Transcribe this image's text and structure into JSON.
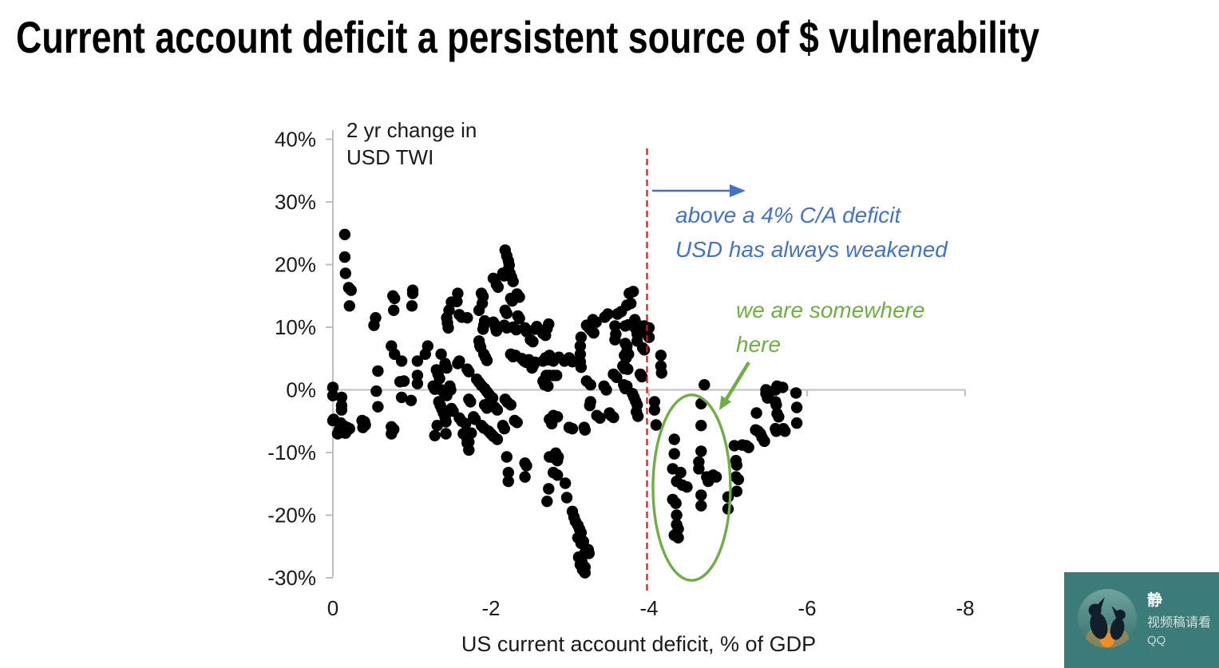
{
  "page": {
    "title": "Current account deficit a persistent source of $ vulnerability"
  },
  "chart_data": {
    "type": "scatter",
    "y_axis_note_line1": "2 yr change in",
    "y_axis_note_line2": "USD TWI",
    "xlabel": "US current account deficit, % of GDP",
    "xlim": [
      0,
      -8
    ],
    "ylim": [
      -30,
      40
    ],
    "grid": false,
    "axis_color": "#BFBFBF",
    "tick_label_color": "#1A1A1A",
    "point_color": "#000000",
    "x_ticks": [
      {
        "value": 0,
        "label": "0"
      },
      {
        "value": -2,
        "label": "-2"
      },
      {
        "value": -4,
        "label": "-4"
      },
      {
        "value": -6,
        "label": "-6"
      },
      {
        "value": -8,
        "label": "-8"
      }
    ],
    "y_ticks": [
      {
        "value": 40,
        "label": "40%"
      },
      {
        "value": 30,
        "label": "30%"
      },
      {
        "value": 20,
        "label": "20%"
      },
      {
        "value": 10,
        "label": "10%"
      },
      {
        "value": 0,
        "label": "0%"
      },
      {
        "value": -10,
        "label": "-10%"
      },
      {
        "value": -20,
        "label": "-20%"
      },
      {
        "value": -30,
        "label": "-30%"
      }
    ],
    "reference_line": {
      "x": -4,
      "color": "#EE1111",
      "style": "dashed"
    },
    "annotations": {
      "blue": {
        "line1": "above a 4% C/A deficit",
        "line2": "USD has always weakened",
        "color": "#4472C4",
        "arrow": "right"
      },
      "green": {
        "line1": "we are somewhere",
        "line2": "here",
        "color": "#70AD47",
        "arrow": "down-left",
        "ellipse": {
          "cx": -4.54,
          "cy": -15.6,
          "rx": 0.49,
          "ry": 14.8
        }
      }
    },
    "points": [
      [
        -0.15,
        24.8
      ],
      [
        -0.15,
        21.2
      ],
      [
        -0.16,
        18.6
      ],
      [
        -0.2,
        16.3
      ],
      [
        -0.23,
        15.9
      ],
      [
        -0.21,
        13.4
      ],
      [
        0.0,
        0.4
      ],
      [
        0.0,
        -0.9
      ],
      [
        -0.11,
        -1.2
      ],
      [
        -0.11,
        -2.5
      ],
      [
        -0.11,
        -3.2
      ],
      [
        -0.01,
        -4.7
      ],
      [
        0.0,
        -4.9
      ],
      [
        -0.1,
        -5.3
      ],
      [
        -0.13,
        -5.7
      ],
      [
        -0.18,
        -6.0
      ],
      [
        -0.21,
        -6.2
      ],
      [
        -0.08,
        -6.4
      ],
      [
        -0.11,
        -6.8
      ],
      [
        -0.06,
        -7.0
      ],
      [
        -0.16,
        -6.9
      ],
      [
        -0.37,
        -4.9
      ],
      [
        -0.4,
        -5.1
      ],
      [
        -0.41,
        -5.6
      ],
      [
        -0.38,
        -6.0
      ],
      [
        -0.76,
        15.0
      ],
      [
        -0.78,
        14.6
      ],
      [
        -0.77,
        12.7
      ],
      [
        -1.01,
        15.9
      ],
      [
        -1.01,
        15.4
      ],
      [
        -1.0,
        13.4
      ],
      [
        -0.54,
        11.5
      ],
      [
        -0.52,
        10.3
      ],
      [
        -0.74,
        7.0
      ],
      [
        -0.78,
        5.7
      ],
      [
        -0.87,
        4.6
      ],
      [
        -0.57,
        3.0
      ],
      [
        -0.9,
        1.4
      ],
      [
        -0.85,
        1.3
      ],
      [
        -0.55,
        -0.2
      ],
      [
        -0.57,
        -2.7
      ],
      [
        -0.87,
        -1.2
      ],
      [
        -0.99,
        -1.7
      ],
      [
        -0.74,
        -5.9
      ],
      [
        -0.77,
        -6.3
      ],
      [
        -0.74,
        -7.0
      ],
      [
        -1.2,
        7.0
      ],
      [
        -1.17,
        5.7
      ],
      [
        -1.07,
        4.6
      ],
      [
        -1.07,
        2.3
      ],
      [
        -1.07,
        1.0
      ],
      [
        -1.37,
        5.7
      ],
      [
        -1.42,
        4.2
      ],
      [
        -1.44,
        3.5
      ],
      [
        -1.31,
        3.2
      ],
      [
        -1.33,
        2.5
      ],
      [
        -1.35,
        1.8
      ],
      [
        -1.27,
        0.6
      ],
      [
        -1.29,
        0.1
      ],
      [
        -1.37,
        0.0
      ],
      [
        -1.41,
        -0.5
      ],
      [
        -1.44,
        -0.9
      ],
      [
        -1.48,
        0.6
      ],
      [
        -1.49,
        0.0
      ],
      [
        -1.34,
        -1.9
      ],
      [
        -1.36,
        -2.5
      ],
      [
        -1.38,
        -3.1
      ],
      [
        -1.4,
        -3.7
      ],
      [
        -1.42,
        -4.4
      ],
      [
        -1.43,
        -5.1
      ],
      [
        -1.32,
        -5.7
      ],
      [
        -1.29,
        -7.3
      ],
      [
        -1.43,
        -7.0
      ],
      [
        -1.5,
        -3.0
      ],
      [
        -1.52,
        -3.4
      ],
      [
        -1.58,
        15.4
      ],
      [
        -1.57,
        14.1
      ],
      [
        -1.5,
        14.0
      ],
      [
        -1.47,
        12.7
      ],
      [
        -1.44,
        11.5
      ],
      [
        -1.45,
        10.7
      ],
      [
        -1.46,
        9.9
      ],
      [
        -1.6,
        12.0
      ],
      [
        -1.63,
        11.6
      ],
      [
        -1.7,
        11.5
      ],
      [
        -1.58,
        4.2
      ],
      [
        -1.6,
        4.6
      ],
      [
        -1.7,
        3.3
      ],
      [
        -1.72,
        2.9
      ],
      [
        -1.6,
        -4.5
      ],
      [
        -1.63,
        -5.0
      ],
      [
        -1.68,
        -5.4
      ],
      [
        -1.78,
        -4.3
      ],
      [
        -1.8,
        -4.7
      ],
      [
        -1.72,
        -1.5
      ],
      [
        -1.74,
        -1.9
      ],
      [
        -1.65,
        -7.0
      ],
      [
        -1.7,
        -7.5
      ],
      [
        -1.72,
        -8.3
      ],
      [
        -1.75,
        -6.9
      ],
      [
        -1.7,
        -7.9
      ],
      [
        -1.7,
        -8.5
      ],
      [
        -1.72,
        -9.6
      ],
      [
        -1.88,
        15.4
      ],
      [
        -1.9,
        14.9
      ],
      [
        -1.89,
        13.8
      ],
      [
        -1.85,
        12.7
      ],
      [
        -1.92,
        11.0
      ],
      [
        -1.91,
        10.3
      ],
      [
        -1.9,
        9.7
      ],
      [
        -1.85,
        7.8
      ],
      [
        -1.86,
        7.1
      ],
      [
        -1.87,
        6.8
      ],
      [
        -1.91,
        5.7
      ],
      [
        -1.93,
        5.2
      ],
      [
        -1.95,
        4.7
      ],
      [
        -1.82,
        1.7
      ],
      [
        -1.85,
        1.2
      ],
      [
        -1.88,
        0.7
      ],
      [
        -1.92,
        0.2
      ],
      [
        -1.95,
        -0.3
      ],
      [
        -1.98,
        -0.8
      ],
      [
        -2.02,
        -1.3
      ],
      [
        -1.88,
        -5.7
      ],
      [
        -1.91,
        -6.1
      ],
      [
        -1.97,
        -6.6
      ],
      [
        -2.0,
        -7.0
      ],
      [
        -2.03,
        -7.4
      ],
      [
        -2.05,
        -2.8
      ],
      [
        -2.08,
        -3.2
      ],
      [
        -1.92,
        -2.4
      ],
      [
        -1.95,
        -2.9
      ],
      [
        -2.08,
        -7.9
      ],
      [
        -2.03,
        17.8
      ],
      [
        -2.05,
        17.6
      ],
      [
        -2.07,
        16.8
      ],
      [
        -2.09,
        16.4
      ],
      [
        -2.03,
        10.8
      ],
      [
        -2.05,
        10.4
      ],
      [
        -2.06,
        9.9
      ],
      [
        -2.07,
        9.4
      ],
      [
        -2.18,
        22.3
      ],
      [
        -2.2,
        21.4
      ],
      [
        -2.22,
        20.6
      ],
      [
        -2.23,
        19.9
      ],
      [
        -2.22,
        19.2
      ],
      [
        -2.24,
        18.6
      ],
      [
        -2.26,
        18.0
      ],
      [
        -2.28,
        17.3
      ],
      [
        -2.15,
        18.6
      ],
      [
        -2.17,
        18.2
      ],
      [
        -2.33,
        15.3
      ],
      [
        -2.36,
        14.8
      ],
      [
        -2.25,
        14.6
      ],
      [
        -2.27,
        14.2
      ],
      [
        -2.18,
        12.7
      ],
      [
        -2.2,
        12.2
      ],
      [
        -2.34,
        11.8
      ],
      [
        -2.36,
        11.4
      ],
      [
        -2.17,
        10.3
      ],
      [
        -2.2,
        9.9
      ],
      [
        -2.28,
        10.0
      ],
      [
        -2.32,
        9.6
      ],
      [
        -2.43,
        9.9
      ],
      [
        -2.45,
        9.3
      ],
      [
        -2.25,
        5.7
      ],
      [
        -2.28,
        5.3
      ],
      [
        -2.31,
        5.5
      ],
      [
        -2.39,
        5.0
      ],
      [
        -2.42,
        4.6
      ],
      [
        -2.45,
        4.4
      ],
      [
        -2.48,
        4.8
      ],
      [
        -2.18,
        -1.5
      ],
      [
        -2.21,
        -2.0
      ],
      [
        -2.25,
        -2.4
      ],
      [
        -2.15,
        -5.7
      ],
      [
        -2.17,
        -6.2
      ],
      [
        -2.3,
        -4.9
      ],
      [
        -2.33,
        -5.2
      ],
      [
        -2.2,
        -10.7
      ],
      [
        -2.22,
        -13.2
      ],
      [
        -2.22,
        -14.6
      ],
      [
        -2.43,
        -11.7
      ],
      [
        -2.45,
        -12.1
      ],
      [
        -2.43,
        -13.9
      ],
      [
        -2.52,
        3.5
      ],
      [
        -2.54,
        4.0
      ],
      [
        -2.56,
        4.4
      ],
      [
        -2.56,
        9.7
      ],
      [
        -2.58,
        10.1
      ],
      [
        -2.71,
        9.8
      ],
      [
        -2.73,
        10.5
      ],
      [
        -2.66,
        9.0
      ],
      [
        -2.69,
        8.7
      ],
      [
        -2.5,
        8.0
      ],
      [
        -2.53,
        7.7
      ],
      [
        -2.66,
        4.6
      ],
      [
        -2.69,
        5.1
      ],
      [
        -2.73,
        4.8
      ],
      [
        -2.76,
        5.1
      ],
      [
        -2.79,
        4.6
      ],
      [
        -2.7,
        2.3
      ],
      [
        -2.74,
        2.3
      ],
      [
        -2.79,
        2.3
      ],
      [
        -2.83,
        2.3
      ],
      [
        -2.66,
        1.4
      ],
      [
        -2.68,
        0.8
      ],
      [
        -2.72,
        0.6
      ],
      [
        -2.74,
        -4.7
      ],
      [
        -2.77,
        -5.4
      ],
      [
        -2.79,
        -4.1
      ],
      [
        -2.84,
        -4.3
      ],
      [
        -2.74,
        -10.7
      ],
      [
        -2.79,
        -10.8
      ],
      [
        -2.84,
        -11.3
      ],
      [
        -2.79,
        -13.2
      ],
      [
        -2.84,
        -13.6
      ],
      [
        -2.73,
        -15.8
      ],
      [
        -2.71,
        -17.8
      ],
      [
        -2.74,
        5.5
      ],
      [
        -2.79,
        4.8
      ],
      [
        -2.86,
        5.2
      ],
      [
        -2.93,
        4.6
      ],
      [
        -2.99,
        5.1
      ],
      [
        -2.94,
        -14.9
      ],
      [
        -2.96,
        -17.2
      ],
      [
        -2.99,
        -6.0
      ],
      [
        -3.03,
        -6.2
      ],
      [
        -3.18,
        -6.0
      ],
      [
        -3.19,
        -6.4
      ],
      [
        -2.82,
        -10.1
      ],
      [
        -2.85,
        -10.7
      ],
      [
        -3.03,
        -19.4
      ],
      [
        -3.05,
        -20.3
      ],
      [
        -3.07,
        -21.0
      ],
      [
        -3.1,
        -21.6
      ],
      [
        -3.12,
        -22.2
      ],
      [
        -3.14,
        -22.8
      ],
      [
        -3.1,
        -23.6
      ],
      [
        -3.17,
        -24.2
      ],
      [
        -3.14,
        -24.5
      ],
      [
        -3.23,
        -25.5
      ],
      [
        -3.19,
        -26.0
      ],
      [
        -3.24,
        -26.1
      ],
      [
        -3.11,
        -26.7
      ],
      [
        -3.15,
        -27.4
      ],
      [
        -3.13,
        -27.9
      ],
      [
        -3.19,
        -28.3
      ],
      [
        -3.16,
        -28.7
      ],
      [
        -3.19,
        -29.2
      ],
      [
        -3.29,
        11.2
      ],
      [
        -3.33,
        10.8
      ],
      [
        -3.21,
        10.3
      ],
      [
        -3.24,
        9.9
      ],
      [
        -3.27,
        9.5
      ],
      [
        -3.3,
        9.1
      ],
      [
        -3.14,
        8.4
      ],
      [
        -3.13,
        7.0
      ],
      [
        -3.13,
        5.7
      ],
      [
        -3.13,
        4.5
      ],
      [
        -3.14,
        3.6
      ],
      [
        -3.03,
        4.5
      ],
      [
        -3.26,
        -1.9
      ],
      [
        -3.25,
        -2.5
      ],
      [
        -3.21,
        1.4
      ],
      [
        -3.26,
        0.8
      ],
      [
        -3.43,
        0.6
      ],
      [
        -3.46,
        0.0
      ],
      [
        -3.55,
        2.5
      ],
      [
        -3.59,
        2.0
      ],
      [
        -3.34,
        -4.1
      ],
      [
        -3.38,
        -4.5
      ],
      [
        -3.5,
        -3.7
      ],
      [
        -3.52,
        -4.1
      ],
      [
        -3.55,
        -4.4
      ],
      [
        -3.68,
        0.8
      ],
      [
        -3.72,
        0.6
      ],
      [
        -3.7,
        0.2
      ],
      [
        -3.7,
        3.6
      ],
      [
        -3.73,
        3.3
      ],
      [
        -3.89,
        2.5
      ],
      [
        -3.91,
        2.1
      ],
      [
        -3.79,
        -0.6
      ],
      [
        -3.81,
        -1.2
      ],
      [
        -3.83,
        -1.8
      ],
      [
        -3.85,
        -2.4
      ],
      [
        -3.84,
        -3.5
      ],
      [
        -3.86,
        -4.2
      ],
      [
        -3.75,
        15.4
      ],
      [
        -3.8,
        15.7
      ],
      [
        -3.72,
        13.5
      ],
      [
        -3.77,
        13.8
      ],
      [
        -3.65,
        12.5
      ],
      [
        -3.6,
        12.1
      ],
      [
        -3.44,
        11.6
      ],
      [
        -3.48,
        12.1
      ],
      [
        -3.7,
        10.2
      ],
      [
        -3.74,
        10.4
      ],
      [
        -3.57,
        10.2
      ],
      [
        -3.58,
        8.9
      ],
      [
        -3.57,
        8.0
      ],
      [
        -3.82,
        11.2
      ],
      [
        -3.84,
        10.6
      ],
      [
        -3.83,
        9.8
      ],
      [
        -3.85,
        8.9
      ],
      [
        -3.85,
        7.8
      ],
      [
        -3.94,
        10.2
      ],
      [
        -3.95,
        9.5
      ],
      [
        -3.97,
        8.9
      ],
      [
        -4.0,
        9.9
      ],
      [
        -4.0,
        8.4
      ],
      [
        -3.92,
        6.7
      ],
      [
        -3.94,
        6.4
      ],
      [
        -3.7,
        7.4
      ],
      [
        -3.72,
        7.0
      ],
      [
        -3.69,
        5.5
      ],
      [
        -3.71,
        5.1
      ],
      [
        -3.67,
        3.8
      ],
      [
        -3.69,
        3.4
      ],
      [
        -3.72,
        6.1
      ],
      [
        -3.74,
        5.7
      ],
      [
        -4.15,
        5.5
      ],
      [
        -4.15,
        3.8
      ],
      [
        -4.16,
        2.7
      ],
      [
        -4.07,
        -1.9
      ],
      [
        -4.07,
        -3.2
      ],
      [
        -4.09,
        -5.6
      ],
      [
        -4.7,
        0.8
      ],
      [
        -4.66,
        -2.2
      ],
      [
        -4.66,
        -5.7
      ],
      [
        -4.32,
        -7.9
      ],
      [
        -4.32,
        -10.2
      ],
      [
        -4.3,
        -12.6
      ],
      [
        -4.4,
        -13.2
      ],
      [
        -4.35,
        -14.6
      ],
      [
        -4.42,
        -15.2
      ],
      [
        -4.48,
        -15.5
      ],
      [
        -4.66,
        -9.8
      ],
      [
        -4.63,
        -11.5
      ],
      [
        -4.63,
        -12.6
      ],
      [
        -4.73,
        -13.9
      ],
      [
        -4.81,
        -13.6
      ],
      [
        -4.85,
        -13.9
      ],
      [
        -4.75,
        -14.6
      ],
      [
        -4.66,
        -16.8
      ],
      [
        -4.66,
        -18.5
      ],
      [
        -4.3,
        -17.5
      ],
      [
        -4.34,
        -18.1
      ],
      [
        -4.35,
        -20.0
      ],
      [
        -4.35,
        -21.5
      ],
      [
        -4.37,
        -22.2
      ],
      [
        -4.32,
        -23.2
      ],
      [
        -4.37,
        -23.6
      ],
      [
        -5.08,
        -8.9
      ],
      [
        -5.1,
        -11.3
      ],
      [
        -5.11,
        -12.0
      ],
      [
        -5.1,
        -13.9
      ],
      [
        -5.13,
        -14.3
      ],
      [
        -5.11,
        -16.2
      ],
      [
        -5.0,
        -17.1
      ],
      [
        -5.0,
        -19.0
      ],
      [
        -5.23,
        -8.9
      ],
      [
        -5.26,
        -9.2
      ],
      [
        -5.18,
        -8.8
      ],
      [
        -5.36,
        -3.7
      ],
      [
        -5.35,
        -6.4
      ],
      [
        -5.38,
        -6.6
      ],
      [
        -5.41,
        -7.0
      ],
      [
        -5.43,
        -7.6
      ],
      [
        -5.46,
        -8.2
      ],
      [
        -5.48,
        0.0
      ],
      [
        -5.53,
        -0.3
      ],
      [
        -5.48,
        -0.6
      ],
      [
        -5.5,
        -1.3
      ],
      [
        -5.62,
        0.6
      ],
      [
        -5.69,
        0.4
      ],
      [
        -5.6,
        0.0
      ],
      [
        -5.6,
        -1.9
      ],
      [
        -5.61,
        -2.4
      ],
      [
        -5.62,
        -3.8
      ],
      [
        -5.64,
        -4.3
      ],
      [
        -5.6,
        -6.2
      ],
      [
        -5.61,
        -6.6
      ],
      [
        -5.7,
        -6.2
      ],
      [
        -5.72,
        -6.6
      ],
      [
        -5.86,
        -0.5
      ],
      [
        -5.87,
        -2.8
      ],
      [
        -5.87,
        -5.3
      ]
    ]
  },
  "qq_widget": {
    "name": "静",
    "message": "视频稿请看",
    "app": "QQ",
    "bg_color": "#3B7B78"
  }
}
